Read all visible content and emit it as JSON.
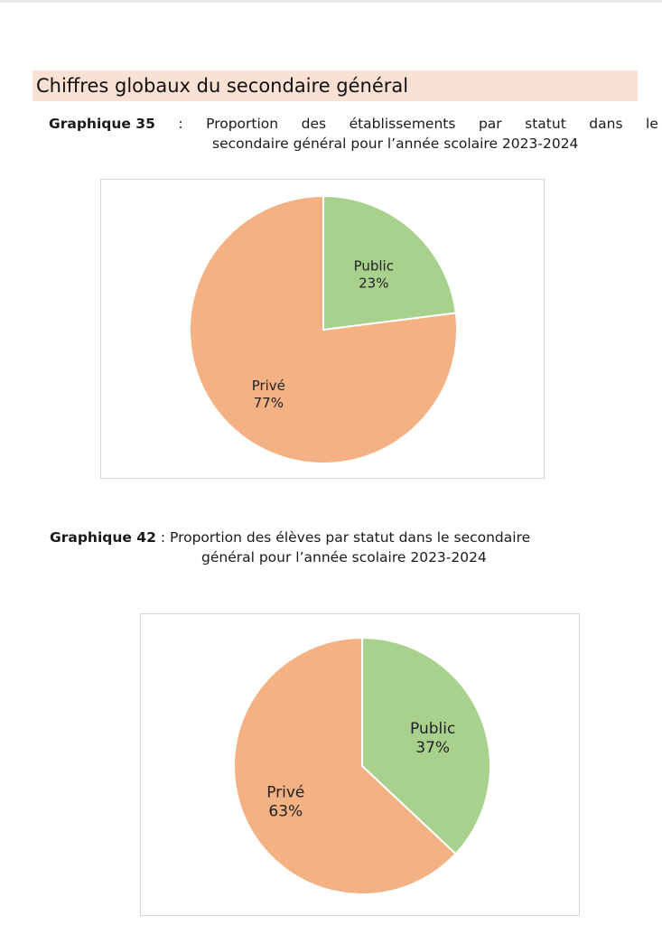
{
  "section_title": "Chiffres globaux du secondaire général",
  "charts_text": [
    {
      "label": "Graphique 35",
      "sep": ":",
      "line1_words": [
        "Proportion",
        "des",
        "établissements",
        "par",
        "statut",
        "dans",
        "le"
      ],
      "line2": "secondaire général pour l’année scolaire 2023-2024"
    },
    {
      "label": "Graphique 42",
      "sep": ":",
      "line1": "Proportion des élèves par statut dans le secondaire",
      "line2": "général pour l’année scolaire 2023-2024"
    }
  ],
  "chart_data": [
    {
      "type": "pie",
      "categories": [
        "Public",
        "Privé"
      ],
      "values": [
        23,
        77
      ],
      "labels": [
        "23%",
        "77%"
      ],
      "colors": [
        "#a9d18e",
        "#f4b183"
      ],
      "start_angle_deg": 0,
      "direction": "clockwise",
      "legend": "none"
    },
    {
      "type": "pie",
      "categories": [
        "Public",
        "Privé"
      ],
      "values": [
        37,
        63
      ],
      "labels": [
        "37%",
        "63%"
      ],
      "colors": [
        "#a9d18e",
        "#f4b183"
      ],
      "start_angle_deg": 0,
      "direction": "clockwise",
      "legend": "none"
    }
  ]
}
